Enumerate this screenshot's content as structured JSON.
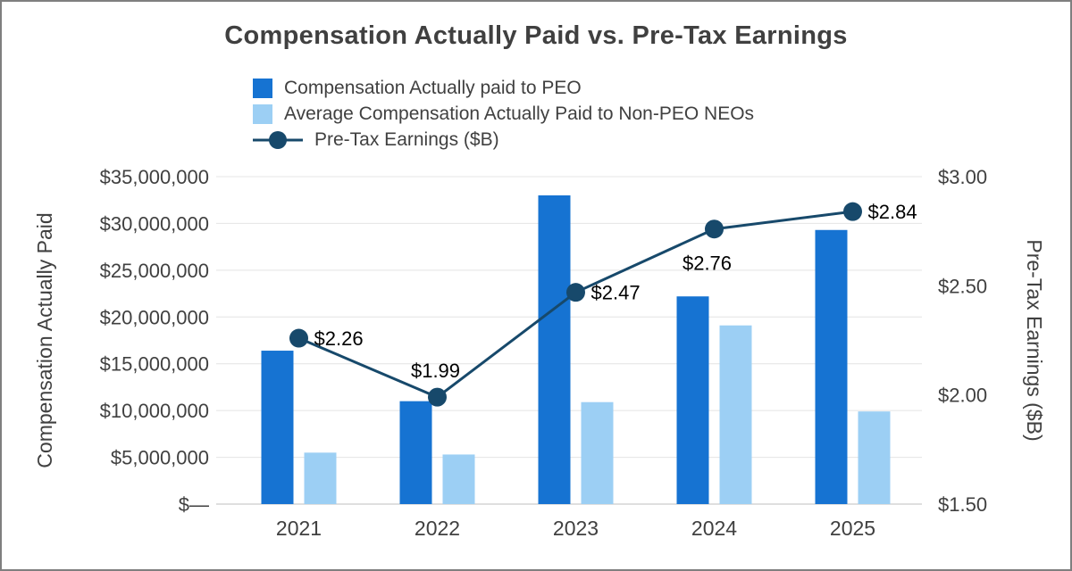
{
  "title": "Compensation Actually Paid vs. Pre-Tax Earnings",
  "legend": [
    {
      "label": "Compensation Actually paid to PEO",
      "type": "square",
      "color": "#1673D2"
    },
    {
      "label": "Average Compensation Actually Paid to Non-PEO NEOs",
      "type": "square",
      "color": "#9CCFF4"
    },
    {
      "label": "Pre-Tax Earnings ($B)",
      "type": "line-marker",
      "color": "#17496B"
    }
  ],
  "chart_data": {
    "type": "bar",
    "subtype": "grouped-bars-with-line",
    "title": "Compensation Actually Paid vs. Pre-Tax Earnings",
    "categories": [
      "2021",
      "2022",
      "2023",
      "2024",
      "2025"
    ],
    "series": [
      {
        "name": "Compensation Actually paid to PEO",
        "type": "bar",
        "axis": "left",
        "color": "#1673D2",
        "values": [
          16400000,
          11000000,
          33000000,
          22200000,
          29300000
        ]
      },
      {
        "name": "Average Compensation Actually Paid to Non-PEO NEOs",
        "type": "bar",
        "axis": "left",
        "color": "#9CCFF4",
        "values": [
          5500000,
          5300000,
          10900000,
          19100000,
          9900000
        ]
      },
      {
        "name": "Pre-Tax Earnings ($B)",
        "type": "line",
        "axis": "right",
        "color": "#17496B",
        "values": [
          2.26,
          1.99,
          2.47,
          2.76,
          2.84
        ],
        "point_labels": [
          "$2.26",
          "$1.99",
          "$2.47",
          "$2.76",
          "$2.84"
        ]
      }
    ],
    "left_axis": {
      "title": "Compensation Actually Paid",
      "min": 0,
      "max": 35000000,
      "step": 5000000,
      "tick_labels": [
        "$—",
        "$5,000,000",
        "$10,000,000",
        "$15,000,000",
        "$20,000,000",
        "$25,000,000",
        "$30,000,000",
        "$35,000,000"
      ]
    },
    "right_axis": {
      "title": "Pre-Tax Earnings ($B)",
      "min": 1.5,
      "max": 3.0,
      "step": 0.5,
      "tick_labels": [
        "$1.50",
        "$2.00",
        "$2.50",
        "$3.00"
      ]
    },
    "grid": true,
    "legend_position": "top",
    "colors": {
      "text": "#404040",
      "point_label_text": "#000000",
      "gridline": "#E4E4E4",
      "axis_line": "#BFBFBF"
    }
  }
}
